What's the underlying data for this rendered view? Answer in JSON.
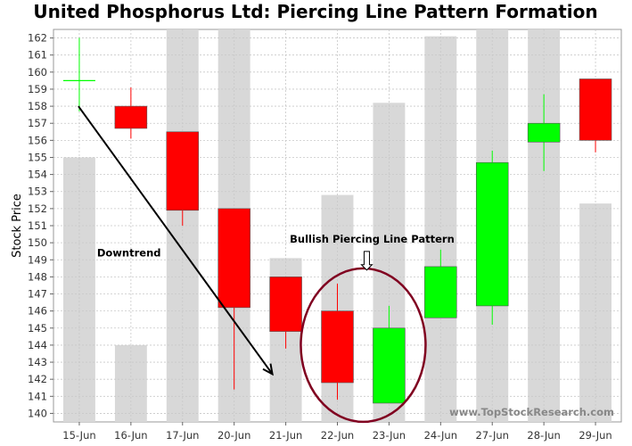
{
  "chart_data": {
    "type": "candlestick",
    "title": "United Phosphorus Ltd: Piercing Line Pattern Formation",
    "xlabel": "",
    "ylabel": "Stock Price",
    "ylim": [
      139.5,
      162.5
    ],
    "yticks": [
      140,
      141,
      142,
      143,
      144,
      145,
      146,
      147,
      148,
      149,
      150,
      151,
      152,
      153,
      154,
      155,
      156,
      157,
      158,
      159,
      160,
      161,
      162
    ],
    "grid": true,
    "categories": [
      "15-Jun",
      "16-Jun",
      "17-Jun",
      "20-Jun",
      "21-Jun",
      "22-Jun",
      "23-Jun",
      "24-Jun",
      "27-Jun",
      "28-Jun",
      "29-Jun"
    ],
    "open": [
      159.5,
      158.0,
      156.5,
      152.0,
      148.0,
      146.0,
      140.6,
      145.6,
      146.3,
      155.9,
      159.6
    ],
    "high": [
      162.0,
      159.1,
      156.5,
      152.0,
      148.0,
      147.6,
      146.3,
      149.6,
      155.4,
      158.7,
      159.6
    ],
    "low": [
      157.7,
      156.1,
      151.0,
      141.4,
      143.8,
      140.8,
      140.6,
      145.6,
      145.2,
      154.2,
      155.3
    ],
    "close": [
      159.5,
      156.7,
      151.9,
      146.2,
      144.8,
      141.8,
      145.0,
      148.6,
      154.7,
      157.0,
      156.0
    ],
    "volume_series": {
      "name": "Volume (relative, background bars)",
      "values": [
        155.0,
        144.0,
        162.5,
        162.5,
        149.1,
        152.8,
        158.2,
        162.1,
        162.5,
        162.5,
        152.3
      ]
    },
    "colors": {
      "up": "#00ff00",
      "down": "#ff0000",
      "volume": "#d8d8d8",
      "trend_arrow": "#000000",
      "circle": "#800020"
    },
    "annotations": {
      "downtrend": "Downtrend",
      "pattern": "Bullish Piercing Line Pattern"
    },
    "watermark": "www.TopStockResearch.com"
  }
}
